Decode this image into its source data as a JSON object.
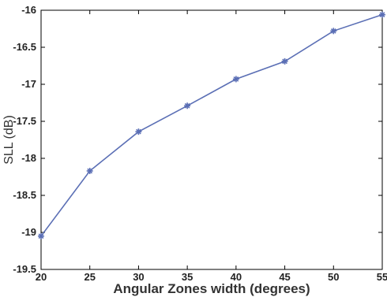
{
  "chart_data": {
    "type": "line",
    "xlabel": "Angular Zones width (degrees)",
    "ylabel": "SLL  (dB)",
    "xlim": [
      20,
      55
    ],
    "ylim": [
      -19.5,
      -16
    ],
    "xticks": [
      "20",
      "25",
      "30",
      "35",
      "40",
      "45",
      "50",
      "55"
    ],
    "yticks": [
      "-16",
      "-16.5",
      "-17",
      "-17.5",
      "-18",
      "-18.5",
      "-19",
      "-19.5"
    ],
    "grid": false,
    "series": [
      {
        "x": [
          20,
          25,
          30,
          35,
          40,
          45,
          50,
          55
        ],
        "values": [
          -19.05,
          -18.17,
          -17.64,
          -17.29,
          -16.93,
          -16.69,
          -16.28,
          -16.06
        ]
      }
    ],
    "colors": {
      "line": "#5b6fb5",
      "axis": "#000000"
    }
  }
}
